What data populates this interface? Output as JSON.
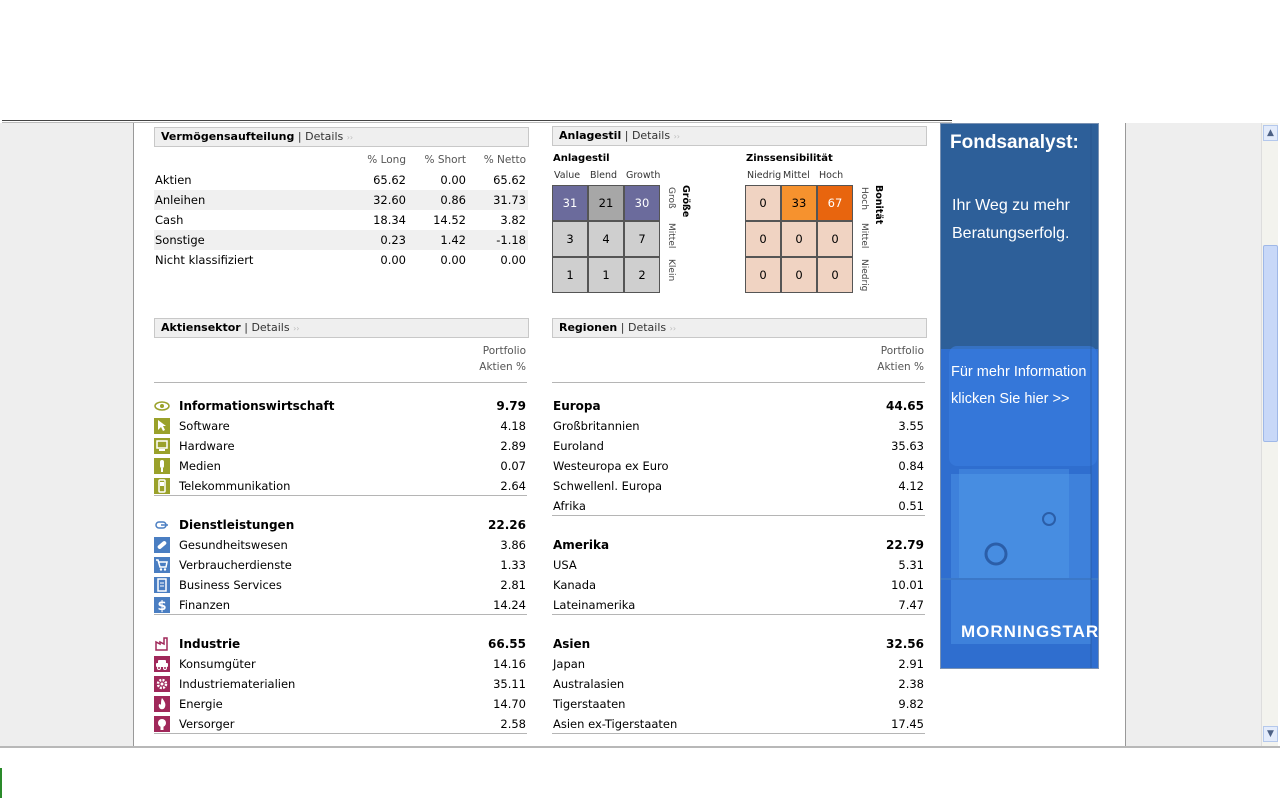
{
  "asset_alloc": {
    "title": "Vermögensaufteilung",
    "sep": "|",
    "details": "Details",
    "arrows": "››",
    "col_long": "% Long",
    "col_short": "% Short",
    "col_net": "% Netto",
    "rows": [
      {
        "label": "Aktien",
        "long": "65.62",
        "short": "0.00",
        "net": "65.62"
      },
      {
        "label": "Anleihen",
        "long": "32.60",
        "short": "0.86",
        "net": "31.73"
      },
      {
        "label": "Cash",
        "long": "18.34",
        "short": "14.52",
        "net": "3.82"
      },
      {
        "label": "Sonstige",
        "long": "0.23",
        "short": "1.42",
        "net": "-1.18"
      },
      {
        "label": "Nicht klassifiziert",
        "long": "0.00",
        "short": "0.00",
        "net": "0.00"
      }
    ]
  },
  "style": {
    "title": "Anlagestil",
    "sep": "|",
    "details": "Details",
    "arrows": "››",
    "equity_title": "Anlagestil",
    "equity_cols": [
      "Value",
      "Blend",
      "Growth"
    ],
    "equity_cells": [
      [
        "31",
        "21",
        "30"
      ],
      [
        "3",
        "4",
        "7"
      ],
      [
        "1",
        "1",
        "2"
      ]
    ],
    "equity_axis_title": "Größe",
    "equity_rows": [
      "Groß",
      "Mittel",
      "Klein"
    ],
    "bond_title": "Zinssensibilität",
    "bond_cols": [
      "Niedrig",
      "Mittel",
      "Hoch"
    ],
    "bond_cells": [
      [
        "0",
        "33",
        "67"
      ],
      [
        "0",
        "0",
        "0"
      ],
      [
        "0",
        "0",
        "0"
      ]
    ],
    "bond_axis_title": "Bonität",
    "bond_rows": [
      "Hoch",
      "Mittel",
      "Niedrig"
    ],
    "colors": {
      "dark": "#6b6b9c",
      "mid": "#a7a7a7",
      "light": "#cfcfcf",
      "peach": "#f0d3c2",
      "orange_mid": "#f6922e",
      "orange_dark": "#e8650e"
    }
  },
  "sectors": {
    "title": "Aktiensektor",
    "sep": "|",
    "details": "Details",
    "arrows": "››",
    "col_hdr_1": "Portfolio",
    "col_hdr_2": "Aktien %",
    "groups": [
      {
        "name": "Informationswirtschaft",
        "value": "9.79",
        "icon": "eye-icon",
        "items": [
          {
            "label": "Software",
            "value": "4.18",
            "icon": "cursor-icon"
          },
          {
            "label": "Hardware",
            "value": "2.89",
            "icon": "computer-icon"
          },
          {
            "label": "Medien",
            "value": "0.07",
            "icon": "microphone-icon"
          },
          {
            "label": "Telekommunikation",
            "value": "2.64",
            "icon": "phone-icon"
          }
        ]
      },
      {
        "name": "Dienstleistungen",
        "value": "22.26",
        "icon": "hand-icon",
        "items": [
          {
            "label": "Gesundheitswesen",
            "value": "3.86",
            "icon": "pill-icon"
          },
          {
            "label": "Verbraucherdienste",
            "value": "1.33",
            "icon": "cart-icon"
          },
          {
            "label": "Business Services",
            "value": "2.81",
            "icon": "document-icon"
          },
          {
            "label": "Finanzen",
            "value": "14.24",
            "icon": "dollar-icon"
          }
        ]
      },
      {
        "name": "Industrie",
        "value": "66.55",
        "icon": "factory-icon",
        "items": [
          {
            "label": "Konsumgüter",
            "value": "14.16",
            "icon": "car-icon"
          },
          {
            "label": "Industriematerialien",
            "value": "35.11",
            "icon": "gear-icon"
          },
          {
            "label": "Energie",
            "value": "14.70",
            "icon": "flame-icon"
          },
          {
            "label": "Versorger",
            "value": "2.58",
            "icon": "bulb-icon"
          }
        ]
      }
    ],
    "colors": {
      "info": "#9aa12a",
      "dienst": "#4a7ec2",
      "industrie": "#a0285a"
    }
  },
  "regions": {
    "title": "Regionen",
    "sep": "|",
    "details": "Details",
    "arrows": "››",
    "col_hdr_1": "Portfolio",
    "col_hdr_2": "Aktien %",
    "groups": [
      {
        "name": "Europa",
        "value": "44.65",
        "items": [
          {
            "label": "Großbritannien",
            "value": "3.55"
          },
          {
            "label": "Euroland",
            "value": "35.63"
          },
          {
            "label": "Westeuropa ex Euro",
            "value": "0.84"
          },
          {
            "label": "Schwellenl. Europa",
            "value": "4.12"
          },
          {
            "label": "Afrika",
            "value": "0.51"
          }
        ]
      },
      {
        "name": "Amerika",
        "value": "22.79",
        "items": [
          {
            "label": "USA",
            "value": "5.31"
          },
          {
            "label": "Kanada",
            "value": "10.01"
          },
          {
            "label": "Lateinamerika",
            "value": "7.47"
          }
        ]
      },
      {
        "name": "Asien",
        "value": "32.56",
        "items": [
          {
            "label": "Japan",
            "value": "2.91"
          },
          {
            "label": "Australasien",
            "value": "2.38"
          },
          {
            "label": "Tigerstaaten",
            "value": "9.82"
          },
          {
            "label": "Asien ex-Tigerstaaten",
            "value": "17.45"
          }
        ]
      }
    ]
  },
  "ad": {
    "headline": "Fondsanalyst:",
    "sub": "Ihr Weg zu mehr Beratungserfolg.",
    "info": "Für mehr Information klicken Sie hier >>",
    "logo": "MORNINGSTAR",
    "logo_mark": "®"
  },
  "scrollbar": {
    "up": "▲",
    "down": "▼"
  }
}
